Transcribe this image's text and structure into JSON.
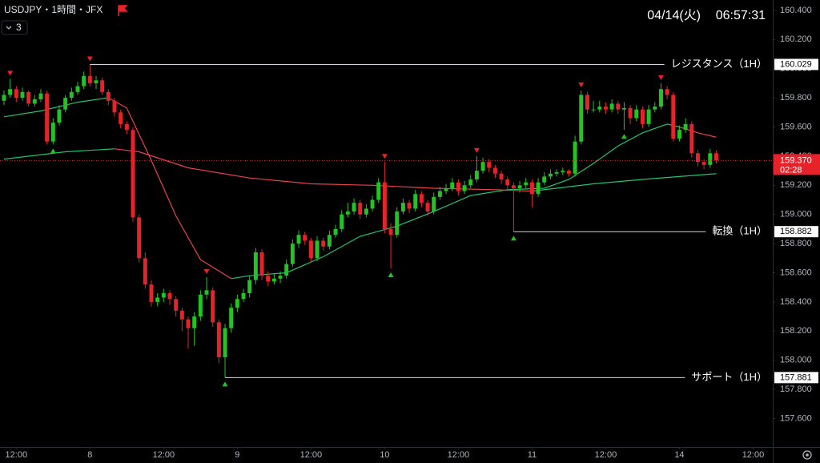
{
  "header": {
    "symbol": "USDJPY・1時間・JFX",
    "indicator_count": "3",
    "date": "04/14(火)",
    "time": "06:57:31"
  },
  "chart_data": {
    "type": "candlestick",
    "up_color": "#22c322",
    "down_color": "#e8222a",
    "xlim": [
      -0.65,
      125.2
    ],
    "ylim": [
      157.405,
      160.471
    ],
    "xticks": [
      {
        "value": 2,
        "label": "12:00"
      },
      {
        "value": 14,
        "label": "8"
      },
      {
        "value": 26,
        "label": "12:00"
      },
      {
        "value": 38,
        "label": "9"
      },
      {
        "value": 50,
        "label": "12:00"
      },
      {
        "value": 62,
        "label": "10"
      },
      {
        "value": 74,
        "label": "12:00"
      },
      {
        "value": 86,
        "label": "11"
      },
      {
        "value": 98,
        "label": "12:00"
      },
      {
        "value": 110,
        "label": "14"
      },
      {
        "value": 122,
        "label": "12:00"
      }
    ],
    "yticks": [
      {
        "value": 160.4,
        "label": "160.400"
      },
      {
        "value": 160.2,
        "label": "160.200"
      },
      {
        "value": 160,
        "label": "160.000"
      },
      {
        "value": 159.8,
        "label": "159.800"
      },
      {
        "value": 159.6,
        "label": "159.600"
      },
      {
        "value": 159.4,
        "label": "159.400"
      },
      {
        "value": 159.2,
        "label": "159.200"
      },
      {
        "value": 159,
        "label": "159.000"
      },
      {
        "value": 158.8,
        "label": "158.800"
      },
      {
        "value": 158.6,
        "label": "158.600"
      },
      {
        "value": 158.4,
        "label": "158.400"
      },
      {
        "value": 158.2,
        "label": "158.200"
      },
      {
        "value": 158,
        "label": "158.000"
      },
      {
        "value": 157.8,
        "label": "157.800"
      },
      {
        "value": 157.6,
        "label": "157.600"
      }
    ],
    "candles": [
      [
        159.78,
        159.85,
        159.75,
        159.82
      ],
      [
        159.82,
        159.93,
        159.8,
        159.86
      ],
      [
        159.86,
        159.88,
        159.77,
        159.8
      ],
      [
        159.8,
        159.87,
        159.78,
        159.84
      ],
      [
        159.84,
        159.85,
        159.74,
        159.76
      ],
      [
        159.76,
        159.82,
        159.74,
        159.79
      ],
      [
        159.79,
        159.86,
        159.77,
        159.83
      ],
      [
        159.83,
        159.85,
        159.48,
        159.5
      ],
      [
        159.5,
        159.66,
        159.48,
        159.63
      ],
      [
        159.63,
        159.75,
        159.61,
        159.72
      ],
      [
        159.72,
        159.82,
        159.7,
        159.8
      ],
      [
        159.8,
        159.87,
        159.78,
        159.84
      ],
      [
        159.84,
        159.91,
        159.82,
        159.88
      ],
      [
        159.88,
        159.98,
        159.86,
        159.95
      ],
      [
        159.95,
        160.029,
        159.88,
        159.9
      ],
      [
        159.9,
        159.95,
        159.86,
        159.92
      ],
      [
        159.92,
        159.94,
        159.82,
        159.84
      ],
      [
        159.84,
        159.86,
        159.75,
        159.78
      ],
      [
        159.78,
        159.8,
        159.67,
        159.7
      ],
      [
        159.7,
        159.72,
        159.59,
        159.62
      ],
      [
        159.62,
        159.64,
        159.55,
        159.58
      ],
      [
        159.58,
        159.6,
        158.95,
        158.98
      ],
      [
        158.98,
        159.0,
        158.67,
        158.7
      ],
      [
        158.7,
        158.74,
        158.49,
        158.52
      ],
      [
        158.52,
        158.55,
        158.37,
        158.4
      ],
      [
        158.4,
        158.46,
        158.37,
        158.43
      ],
      [
        158.43,
        158.49,
        158.4,
        158.46
      ],
      [
        158.46,
        158.48,
        158.38,
        158.42
      ],
      [
        158.42,
        158.44,
        158.3,
        158.34
      ],
      [
        158.34,
        158.36,
        158.2,
        158.28
      ],
      [
        158.28,
        158.3,
        158.08,
        158.22
      ],
      [
        158.22,
        158.33,
        158.1,
        158.3
      ],
      [
        158.3,
        158.48,
        158.27,
        158.45
      ],
      [
        158.45,
        158.57,
        158.42,
        158.48
      ],
      [
        158.48,
        158.5,
        158.23,
        158.26
      ],
      [
        158.26,
        158.28,
        157.98,
        158.02
      ],
      [
        158.02,
        158.25,
        157.881,
        158.22
      ],
      [
        158.22,
        158.39,
        158.19,
        158.36
      ],
      [
        158.36,
        158.45,
        158.33,
        158.42
      ],
      [
        158.42,
        158.49,
        158.4,
        158.46
      ],
      [
        158.46,
        158.58,
        158.43,
        158.55
      ],
      [
        158.55,
        158.77,
        158.52,
        158.74
      ],
      [
        158.74,
        158.76,
        158.55,
        158.58
      ],
      [
        158.58,
        158.61,
        158.51,
        158.54
      ],
      [
        158.54,
        158.59,
        158.52,
        158.56
      ],
      [
        158.56,
        158.61,
        158.53,
        158.58
      ],
      [
        158.58,
        158.69,
        158.56,
        158.66
      ],
      [
        158.66,
        158.83,
        158.64,
        158.8
      ],
      [
        158.8,
        158.89,
        158.77,
        158.86
      ],
      [
        158.86,
        158.88,
        158.79,
        158.82
      ],
      [
        158.82,
        158.84,
        158.67,
        158.7
      ],
      [
        158.7,
        158.85,
        158.68,
        158.82
      ],
      [
        158.82,
        158.84,
        158.75,
        158.78
      ],
      [
        158.78,
        158.89,
        158.76,
        158.86
      ],
      [
        158.86,
        158.93,
        158.84,
        158.9
      ],
      [
        158.9,
        159.03,
        158.88,
        159.0
      ],
      [
        159.0,
        159.08,
        158.98,
        159.02
      ],
      [
        159.02,
        159.11,
        159.0,
        159.08
      ],
      [
        159.08,
        159.1,
        158.97,
        159.0
      ],
      [
        159.0,
        159.07,
        158.98,
        159.04
      ],
      [
        159.04,
        159.13,
        159.02,
        159.1
      ],
      [
        159.1,
        159.25,
        159.08,
        159.22
      ],
      [
        159.22,
        159.36,
        158.87,
        158.9
      ],
      [
        158.9,
        158.94,
        158.63,
        158.86
      ],
      [
        158.86,
        159.05,
        158.84,
        159.02
      ],
      [
        159.02,
        159.11,
        159.0,
        159.08
      ],
      [
        159.08,
        159.1,
        159.01,
        159.04
      ],
      [
        159.04,
        159.17,
        159.02,
        159.14
      ],
      [
        159.14,
        159.16,
        159.05,
        159.08
      ],
      [
        159.08,
        159.1,
        158.99,
        159.02
      ],
      [
        159.02,
        159.15,
        159.0,
        159.12
      ],
      [
        159.12,
        159.19,
        159.1,
        159.16
      ],
      [
        159.16,
        159.21,
        159.14,
        159.18
      ],
      [
        159.18,
        159.25,
        159.16,
        159.22
      ],
      [
        159.22,
        159.24,
        159.13,
        159.16
      ],
      [
        159.16,
        159.23,
        159.14,
        159.2
      ],
      [
        159.2,
        159.27,
        159.18,
        159.24
      ],
      [
        159.24,
        159.4,
        159.22,
        159.3
      ],
      [
        159.3,
        159.39,
        159.28,
        159.36
      ],
      [
        159.36,
        159.38,
        159.29,
        159.32
      ],
      [
        159.32,
        159.34,
        159.25,
        159.28
      ],
      [
        159.28,
        159.3,
        159.21,
        159.24
      ],
      [
        159.24,
        159.26,
        159.17,
        159.2
      ],
      [
        159.2,
        159.22,
        158.882,
        159.18
      ],
      [
        159.18,
        159.23,
        159.15,
        159.2
      ],
      [
        159.2,
        159.25,
        159.18,
        159.22
      ],
      [
        159.22,
        159.24,
        159.05,
        159.14
      ],
      [
        159.14,
        159.25,
        159.12,
        159.22
      ],
      [
        159.22,
        159.29,
        159.2,
        159.26
      ],
      [
        159.26,
        159.31,
        159.24,
        159.28
      ],
      [
        159.28,
        159.31,
        159.26,
        159.29
      ],
      [
        159.29,
        159.32,
        159.27,
        159.3
      ],
      [
        159.3,
        159.31,
        159.26,
        159.28
      ],
      [
        159.28,
        159.54,
        159.26,
        159.5
      ],
      [
        159.5,
        159.85,
        159.48,
        159.82
      ],
      [
        159.82,
        159.84,
        159.69,
        159.72
      ],
      [
        159.72,
        159.78,
        159.7,
        159.72
      ],
      [
        159.72,
        159.78,
        159.7,
        159.74
      ],
      [
        159.74,
        159.77,
        159.69,
        159.72
      ],
      [
        159.72,
        159.79,
        159.7,
        159.76
      ],
      [
        159.76,
        159.78,
        159.69,
        159.72
      ],
      [
        159.72,
        159.77,
        159.58,
        159.73
      ],
      [
        159.73,
        159.75,
        159.62,
        159.66
      ],
      [
        159.66,
        159.75,
        159.64,
        159.72
      ],
      [
        159.72,
        159.74,
        159.59,
        159.62
      ],
      [
        159.62,
        159.75,
        159.6,
        159.72
      ],
      [
        159.72,
        159.77,
        159.7,
        159.74
      ],
      [
        159.74,
        159.9,
        159.72,
        159.86
      ],
      [
        159.86,
        159.88,
        159.79,
        159.82
      ],
      [
        159.82,
        159.84,
        159.5,
        159.52
      ],
      [
        159.52,
        159.61,
        159.5,
        159.58
      ],
      [
        159.58,
        159.66,
        159.56,
        159.62
      ],
      [
        159.62,
        159.64,
        159.39,
        159.42
      ],
      [
        159.42,
        159.44,
        159.33,
        159.36
      ],
      [
        159.36,
        159.38,
        159.31,
        159.34
      ],
      [
        159.34,
        159.45,
        159.32,
        159.42
      ],
      [
        159.42,
        159.44,
        159.35,
        159.37
      ]
    ],
    "pivot_highs": [
      1,
      14,
      33,
      62,
      77,
      94,
      107
    ],
    "pivot_lows": [
      8,
      36,
      63,
      83,
      101
    ],
    "moving_averages": [
      {
        "color": "#22c36a",
        "x": [
          0,
          6,
          12,
          17,
          20,
          24,
          28,
          32,
          37,
          40,
          46,
          52,
          58,
          64,
          70,
          76,
          82,
          88,
          92,
          96,
          100,
          104,
          108,
          110,
          113,
          116
        ],
        "values": [
          159.67,
          159.71,
          159.77,
          159.8,
          null,
          null,
          null,
          null,
          158.56,
          158.58,
          158.6,
          158.71,
          158.85,
          158.92,
          159.02,
          159.13,
          159.17,
          159.18,
          159.24,
          159.35,
          159.47,
          159.56,
          159.62,
          159.6,
          null,
          null
        ]
      },
      {
        "color": "#e8434a",
        "x": [
          0,
          6,
          12,
          17,
          20,
          24,
          28,
          32,
          37,
          40,
          46,
          52,
          58,
          64,
          70,
          76,
          82,
          88,
          92,
          96,
          100,
          104,
          108,
          110,
          113,
          116
        ],
        "values": [
          null,
          null,
          null,
          159.8,
          159.73,
          159.37,
          158.99,
          158.69,
          158.56,
          null,
          null,
          null,
          null,
          null,
          null,
          null,
          null,
          null,
          null,
          null,
          null,
          null,
          null,
          159.6,
          159.56,
          159.53
        ]
      },
      {
        "color": "#22c36a",
        "x": [
          0,
          10,
          18,
          22,
          30,
          40,
          50,
          60,
          70,
          80,
          86,
          92,
          96,
          104,
          110,
          116
        ],
        "values": [
          159.38,
          159.43,
          159.45,
          null,
          null,
          null,
          null,
          null,
          null,
          null,
          159.16,
          159.19,
          159.21,
          159.24,
          159.26,
          159.28
        ]
      },
      {
        "color": "#e8434a",
        "x": [
          0,
          10,
          18,
          22,
          30,
          40,
          50,
          60,
          70,
          80,
          86,
          92,
          96,
          104,
          110,
          116
        ],
        "values": [
          null,
          null,
          159.45,
          159.43,
          159.32,
          159.25,
          159.21,
          159.2,
          159.18,
          159.17,
          159.16,
          null,
          null,
          null,
          null,
          null
        ]
      }
    ],
    "levels": [
      {
        "label": "レジスタンス（1H）",
        "value": 160.029
      },
      {
        "label": "転換（1H）",
        "value": 158.882
      },
      {
        "label": "サポート（1H）",
        "value": 157.881
      }
    ],
    "current_price": {
      "value": 159.37,
      "label": "159.370"
    },
    "countdown": "02:28"
  }
}
